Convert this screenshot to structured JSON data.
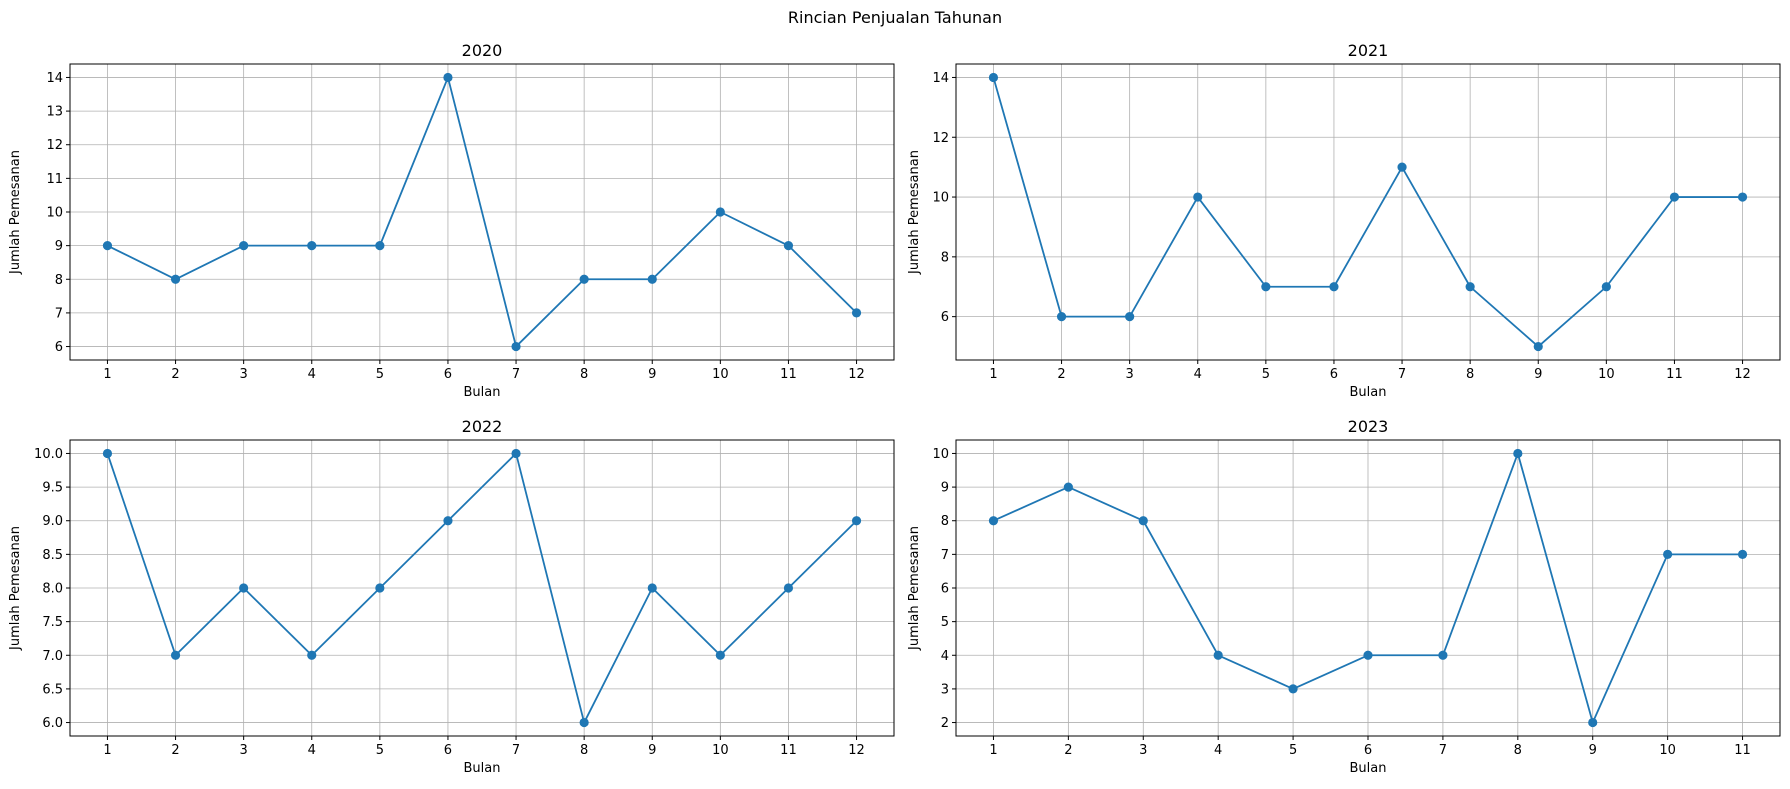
{
  "figure": {
    "title": "Rincian Penjualan Tahunan"
  },
  "chart_data": [
    {
      "type": "line",
      "title": "2020",
      "xlabel": "Bulan",
      "ylabel": "Jumlah Pemesanan",
      "x": [
        1,
        2,
        3,
        4,
        5,
        6,
        7,
        8,
        9,
        10,
        11,
        12
      ],
      "series": [
        {
          "values": [
            9,
            8,
            9,
            9,
            9,
            14,
            6,
            8,
            8,
            10,
            9,
            7
          ]
        }
      ],
      "xlim": [
        0.45,
        12.55
      ],
      "ylim": [
        5.6,
        14.4
      ],
      "xticks": [
        1,
        2,
        3,
        4,
        5,
        6,
        7,
        8,
        9,
        10,
        11,
        12
      ],
      "xtick_labels": [
        "1",
        "2",
        "3",
        "4",
        "5",
        "6",
        "7",
        "8",
        "9",
        "10",
        "11",
        "12"
      ],
      "yticks": [
        6,
        7,
        8,
        9,
        10,
        11,
        12,
        13,
        14
      ],
      "ytick_labels": [
        "6",
        "7",
        "8",
        "9",
        "10",
        "11",
        "12",
        "13",
        "14"
      ],
      "grid": true,
      "color": "#1f77b4"
    },
    {
      "type": "line",
      "title": "2021",
      "xlabel": "Bulan",
      "ylabel": "Jumlah Pemesanan",
      "x": [
        1,
        2,
        3,
        4,
        5,
        6,
        7,
        8,
        9,
        10,
        11,
        12
      ],
      "series": [
        {
          "values": [
            14,
            6,
            6,
            10,
            7,
            7,
            11,
            7,
            5,
            7,
            10,
            10
          ]
        }
      ],
      "xlim": [
        0.45,
        12.55
      ],
      "ylim": [
        4.55,
        14.45
      ],
      "xticks": [
        1,
        2,
        3,
        4,
        5,
        6,
        7,
        8,
        9,
        10,
        11,
        12
      ],
      "xtick_labels": [
        "1",
        "2",
        "3",
        "4",
        "5",
        "6",
        "7",
        "8",
        "9",
        "10",
        "11",
        "12"
      ],
      "yticks": [
        6,
        8,
        10,
        12,
        14
      ],
      "ytick_labels": [
        "6",
        "8",
        "10",
        "12",
        "14"
      ],
      "grid": true,
      "color": "#1f77b4"
    },
    {
      "type": "line",
      "title": "2022",
      "xlabel": "Bulan",
      "ylabel": "Jumlah Pemesanan",
      "x": [
        1,
        2,
        3,
        4,
        5,
        6,
        7,
        8,
        9,
        10,
        11,
        12
      ],
      "series": [
        {
          "values": [
            10,
            7,
            8,
            7,
            8,
            9,
            10,
            6,
            8,
            7,
            8,
            9
          ]
        }
      ],
      "xlim": [
        0.45,
        12.55
      ],
      "ylim": [
        5.8,
        10.2
      ],
      "xticks": [
        1,
        2,
        3,
        4,
        5,
        6,
        7,
        8,
        9,
        10,
        11,
        12
      ],
      "xtick_labels": [
        "1",
        "2",
        "3",
        "4",
        "5",
        "6",
        "7",
        "8",
        "9",
        "10",
        "11",
        "12"
      ],
      "yticks": [
        6.0,
        6.5,
        7.0,
        7.5,
        8.0,
        8.5,
        9.0,
        9.5,
        10.0
      ],
      "ytick_labels": [
        "6.0",
        "6.5",
        "7.0",
        "7.5",
        "8.0",
        "8.5",
        "9.0",
        "9.5",
        "10.0"
      ],
      "grid": true,
      "color": "#1f77b4"
    },
    {
      "type": "line",
      "title": "2023",
      "xlabel": "Bulan",
      "ylabel": "Jumlah Pemesanan",
      "x": [
        1,
        2,
        3,
        4,
        5,
        6,
        7,
        8,
        9,
        10,
        11
      ],
      "series": [
        {
          "values": [
            8,
            9,
            8,
            4,
            3,
            4,
            4,
            10,
            2,
            7,
            7
          ]
        }
      ],
      "xlim": [
        0.5,
        11.5
      ],
      "ylim": [
        1.6,
        10.4
      ],
      "xticks": [
        1,
        2,
        3,
        4,
        5,
        6,
        7,
        8,
        9,
        10,
        11
      ],
      "xtick_labels": [
        "1",
        "2",
        "3",
        "4",
        "5",
        "6",
        "7",
        "8",
        "9",
        "10",
        "11"
      ],
      "yticks": [
        2,
        3,
        4,
        5,
        6,
        7,
        8,
        9,
        10
      ],
      "ytick_labels": [
        "2",
        "3",
        "4",
        "5",
        "6",
        "7",
        "8",
        "9",
        "10"
      ],
      "grid": true,
      "color": "#1f77b4"
    }
  ]
}
